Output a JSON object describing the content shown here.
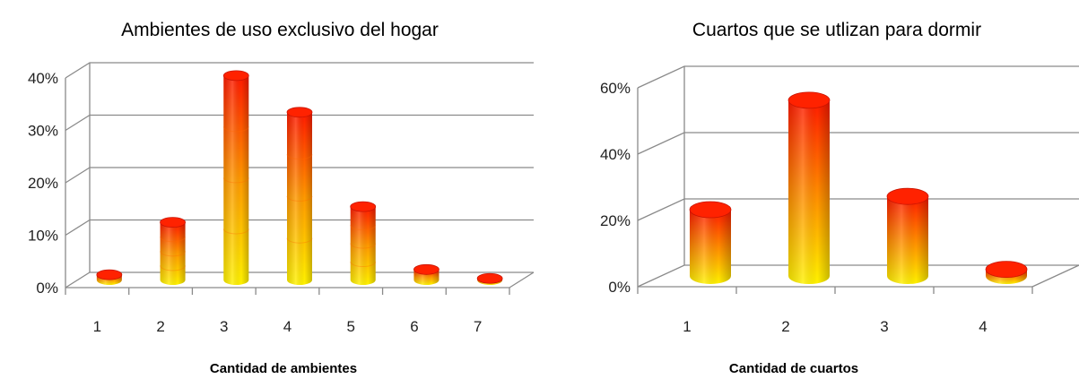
{
  "chart_data": [
    {
      "type": "bar",
      "title": "Ambientes de uso exclusivo del hogar",
      "xlabel": "Cantidad de ambientes",
      "ylabel": "",
      "categories": [
        "1",
        "2",
        "3",
        "4",
        "5",
        "6",
        "7"
      ],
      "values": [
        1,
        11,
        39,
        32,
        14,
        2,
        0.3
      ],
      "ylim": [
        0,
        40
      ],
      "yticks": [
        "0%",
        "10%",
        "20%",
        "30%",
        "40%"
      ],
      "grid": true,
      "style": "3d-cylinder",
      "colors": {
        "top": "#ff2a00",
        "bottom": "#ffee00"
      }
    },
    {
      "type": "bar",
      "title": "Cuartos que se utlizan para dormir",
      "xlabel": "Cantidad de cuartos",
      "ylabel": "",
      "categories": [
        "1",
        "2",
        "3",
        "4"
      ],
      "values": [
        20,
        53,
        24,
        2
      ],
      "ylim": [
        0,
        60
      ],
      "yticks": [
        "0%",
        "20%",
        "40%",
        "60%"
      ],
      "grid": true,
      "style": "3d-cylinder",
      "colors": {
        "top": "#ff2a00",
        "bottom": "#ffee00"
      }
    }
  ]
}
